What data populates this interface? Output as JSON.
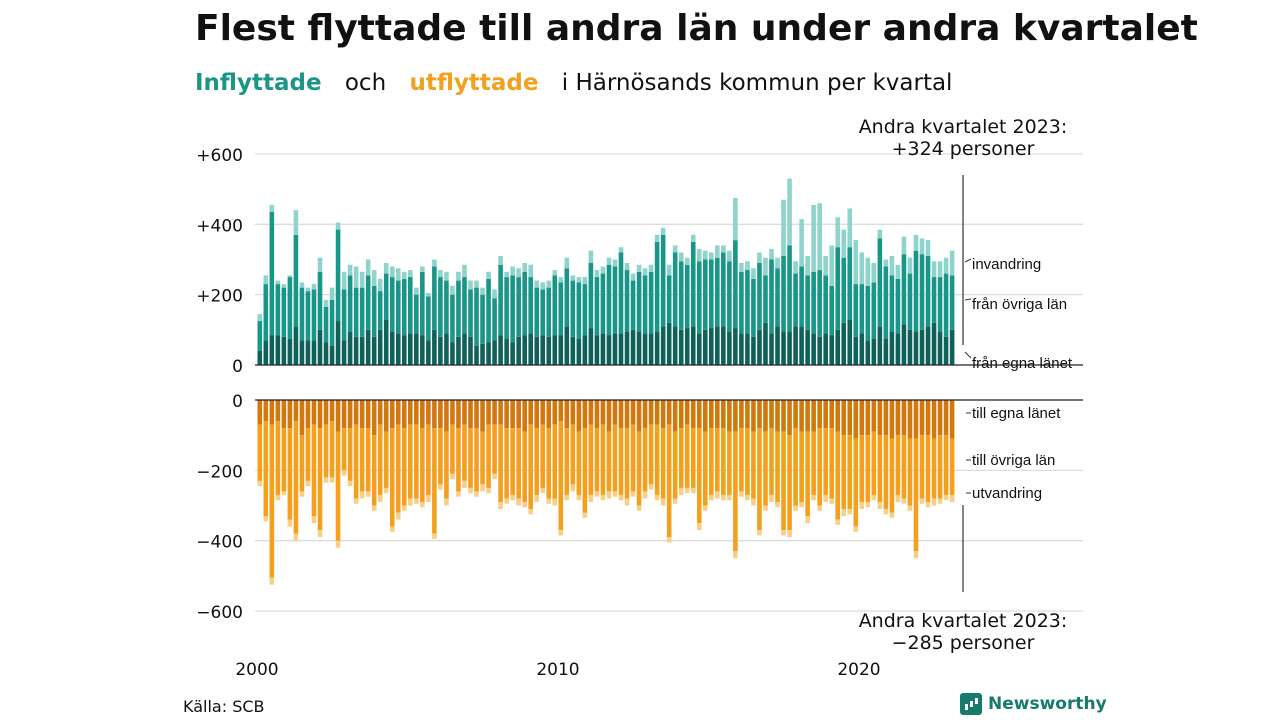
{
  "title": "Flest flyttade till andra län under andra kvartalet",
  "subtitle": {
    "in": "Inflyttade",
    "och": "och",
    "out": "utflyttade",
    "rest": "i Härnösands  kommun  per  kvartal"
  },
  "source": "Källa: SCB",
  "brand": "Newsworthy",
  "chart_data": {
    "type": "bar",
    "stacked": true,
    "x_start": 2000,
    "x_step": 0.25,
    "x_ticks": [
      "2000",
      "2010",
      "2020"
    ],
    "y_ticks": [
      "+600",
      "+400",
      "+200",
      "0",
      "0",
      "−200",
      "−400",
      "−600"
    ],
    "colors": {
      "in_own": "#10615a",
      "in_other": "#1a9688",
      "in_immigration": "#8fd4cc",
      "out_own": "#d1790f",
      "out_other": "#f2a01e",
      "out_emigration": "#f8cf87"
    },
    "inflow_series": [
      {
        "name": "från egna länet",
        "values": [
          40,
          70,
          85,
          85,
          80,
          75,
          110,
          70,
          70,
          70,
          100,
          65,
          55,
          125,
          70,
          95,
          80,
          80,
          100,
          80,
          100,
          130,
          95,
          90,
          85,
          90,
          90,
          85,
          70,
          100,
          80,
          90,
          65,
          80,
          90,
          80,
          55,
          60,
          65,
          70,
          85,
          75,
          65,
          80,
          85,
          90,
          80,
          85,
          80,
          85,
          85,
          110,
          80,
          75,
          85,
          105,
          85,
          90,
          85,
          90,
          90,
          95,
          100,
          95,
          90,
          90,
          95,
          110,
          120,
          110,
          100,
          105,
          110,
          90,
          100,
          105,
          110,
          110,
          95,
          105,
          90,
          90,
          80,
          100,
          120,
          90,
          110,
          95,
          95,
          110,
          110,
          100,
          90,
          80,
          90,
          85,
          100,
          120,
          130,
          80,
          90,
          70,
          75,
          110,
          75,
          95,
          90,
          115,
          100,
          95,
          100,
          110,
          120,
          95,
          80,
          100
        ]
      },
      {
        "name": "från övriga län",
        "values": [
          85,
          160,
          350,
          145,
          140,
          175,
          260,
          150,
          140,
          145,
          165,
          100,
          130,
          260,
          145,
          160,
          140,
          140,
          155,
          145,
          110,
          130,
          155,
          150,
          160,
          160,
          110,
          180,
          125,
          180,
          170,
          150,
          135,
          160,
          160,
          135,
          165,
          140,
          180,
          120,
          200,
          175,
          190,
          170,
          180,
          160,
          140,
          130,
          140,
          170,
          150,
          165,
          160,
          160,
          145,
          185,
          165,
          170,
          200,
          190,
          230,
          175,
          140,
          170,
          165,
          175,
          255,
          260,
          135,
          210,
          195,
          180,
          240,
          205,
          200,
          195,
          195,
          210,
          200,
          250,
          175,
          180,
          165,
          190,
          135,
          210,
          165,
          215,
          245,
          150,
          170,
          155,
          175,
          190,
          165,
          140,
          235,
          185,
          205,
          150,
          140,
          155,
          160,
          250,
          205,
          160,
          155,
          200,
          160,
          230,
          215,
          200,
          130,
          155,
          180,
          155
        ]
      },
      {
        "name": "invandring",
        "values": [
          20,
          25,
          20,
          10,
          10,
          5,
          70,
          15,
          10,
          15,
          40,
          20,
          35,
          20,
          50,
          30,
          60,
          45,
          45,
          45,
          35,
          30,
          30,
          35,
          20,
          20,
          20,
          15,
          10,
          20,
          20,
          25,
          25,
          25,
          35,
          25,
          20,
          20,
          20,
          25,
          25,
          15,
          25,
          25,
          25,
          35,
          20,
          20,
          20,
          15,
          15,
          30,
          15,
          15,
          20,
          35,
          20,
          20,
          20,
          20,
          15,
          20,
          20,
          20,
          20,
          20,
          20,
          20,
          30,
          20,
          25,
          20,
          20,
          35,
          25,
          20,
          35,
          20,
          30,
          120,
          25,
          25,
          30,
          30,
          50,
          30,
          30,
          160,
          190,
          35,
          135,
          55,
          190,
          190,
          55,
          115,
          85,
          80,
          110,
          125,
          90,
          80,
          55,
          25,
          20,
          55,
          40,
          50,
          45,
          45,
          45,
          45,
          45,
          45,
          45,
          70
        ]
      }
    ],
    "outflow_series": [
      {
        "name": "till egna länet",
        "values": [
          -70,
          -60,
          -70,
          -60,
          -80,
          -80,
          -60,
          -100,
          -80,
          -70,
          -80,
          -70,
          -60,
          -90,
          -80,
          -80,
          -70,
          -80,
          -80,
          -100,
          -70,
          -90,
          -80,
          -70,
          -80,
          -70,
          -70,
          -80,
          -70,
          -80,
          -80,
          -90,
          -70,
          -80,
          -70,
          -80,
          -80,
          -90,
          -70,
          -70,
          -70,
          -80,
          -80,
          -80,
          -90,
          -70,
          -80,
          -70,
          -80,
          -70,
          -60,
          -80,
          -70,
          -90,
          -80,
          -70,
          -80,
          -70,
          -90,
          -70,
          -80,
          -80,
          -70,
          -90,
          -80,
          -70,
          -70,
          -80,
          -70,
          -90,
          -80,
          -70,
          -80,
          -80,
          -90,
          -80,
          -80,
          -80,
          -90,
          -90,
          -80,
          -80,
          -90,
          -80,
          -90,
          -80,
          -90,
          -90,
          -100,
          -80,
          -90,
          -90,
          -90,
          -80,
          -80,
          -80,
          -90,
          -100,
          -100,
          -110,
          -100,
          -100,
          -90,
          -100,
          -100,
          -110,
          -100,
          -100,
          -110,
          -110,
          -100,
          -100,
          -110,
          -100,
          -100,
          -110
        ]
      },
      {
        "name": "till övriga län",
        "values": [
          -160,
          -270,
          -435,
          -210,
          -180,
          -260,
          -320,
          -160,
          -150,
          -260,
          -290,
          -150,
          -160,
          -310,
          -120,
          -150,
          -210,
          -180,
          -180,
          -200,
          -200,
          -160,
          -280,
          -250,
          -220,
          -210,
          -210,
          -210,
          -200,
          -300,
          -160,
          -190,
          -140,
          -180,
          -160,
          -170,
          -180,
          -150,
          -180,
          -140,
          -220,
          -200,
          -190,
          -200,
          -200,
          -240,
          -190,
          -180,
          -200,
          -210,
          -310,
          -190,
          -170,
          -180,
          -240,
          -200,
          -180,
          -200,
          -170,
          -190,
          -190,
          -200,
          -190,
          -210,
          -180,
          -170,
          -200,
          -200,
          -320,
          -190,
          -170,
          -180,
          -170,
          -270,
          -210,
          -190,
          -180,
          -190,
          -180,
          -340,
          -180,
          -190,
          -190,
          -290,
          -210,
          -190,
          -200,
          -280,
          -270,
          -220,
          -200,
          -240,
          -180,
          -220,
          -190,
          -200,
          -250,
          -210,
          -210,
          -250,
          -190,
          -190,
          -180,
          -190,
          -210,
          -210,
          -170,
          -180,
          -190,
          -320,
          -180,
          -190,
          -170,
          -180,
          -170,
          -160
        ]
      },
      {
        "name": "utvandring",
        "values": [
          -15,
          -15,
          -20,
          -15,
          -10,
          -20,
          -20,
          -15,
          -15,
          -20,
          -20,
          -15,
          -15,
          -20,
          -15,
          -15,
          -15,
          -20,
          -15,
          -15,
          -20,
          -15,
          -15,
          -20,
          -15,
          -20,
          -15,
          -15,
          -20,
          -15,
          -15,
          -20,
          -15,
          -15,
          -20,
          -15,
          -15,
          -20,
          -15,
          -15,
          -20,
          -15,
          -15,
          -20,
          -15,
          -15,
          -20,
          -15,
          -15,
          -20,
          -15,
          -15,
          -20,
          -15,
          -15,
          -20,
          -15,
          -15,
          -20,
          -15,
          -15,
          -20,
          -15,
          -15,
          -20,
          -15,
          -15,
          -20,
          -15,
          -15,
          -20,
          -15,
          -15,
          -20,
          -15,
          -15,
          -20,
          -15,
          -15,
          -20,
          -15,
          -15,
          -20,
          -15,
          -15,
          -20,
          -15,
          -15,
          -20,
          -15,
          -15,
          -20,
          -15,
          -15,
          -20,
          -15,
          -15,
          -20,
          -15,
          -15,
          -20,
          -15,
          -15,
          -20,
          -15,
          -15,
          -20,
          -15,
          -15,
          -20,
          -15,
          -15,
          -20,
          -15,
          -15,
          -20
        ]
      }
    ],
    "inflow_legend": [
      "invandring",
      "från övriga län",
      "från egna länet"
    ],
    "outflow_legend": [
      "till egna länet",
      "till övriga län",
      "utvandring"
    ],
    "annotation_top": [
      "Andra kvartalet 2023:",
      "+324 personer"
    ],
    "annotation_bottom": [
      "Andra kvartalet 2023:",
      "−285 personer"
    ]
  }
}
